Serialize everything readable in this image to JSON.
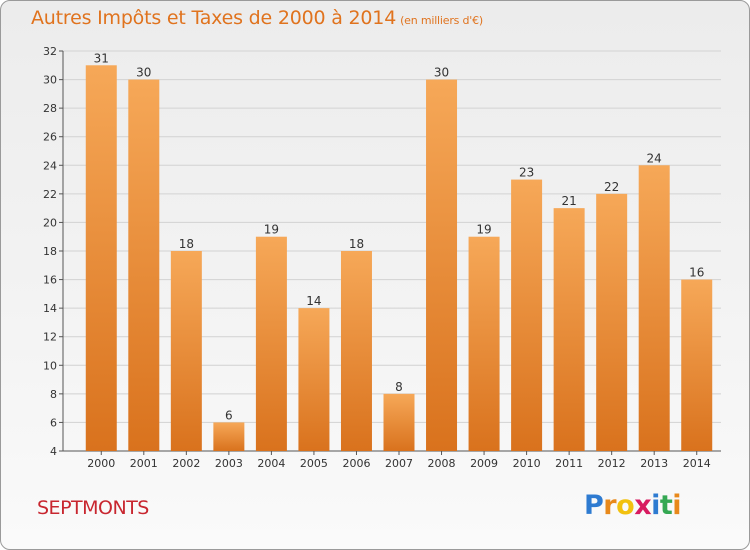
{
  "header": {
    "title": "Autres Impôts et Taxes de 2000 à 2014",
    "unit": "(en milliers d'€)"
  },
  "footer": {
    "commune": "SEPTMONTS",
    "logo_letters": [
      "P",
      "r",
      "o",
      "x",
      "i",
      "t",
      "i"
    ],
    "logo_colors": [
      "#2e7bd1",
      "#e8891b",
      "#f2c10f",
      "#d81b60",
      "#2e7bd1",
      "#35a853",
      "#e8891b"
    ]
  },
  "colors": {
    "bar_top": "#f6a858",
    "bar_bottom": "#d9721d",
    "title": "#e0731e",
    "commune": "#c8262f"
  },
  "chart_data": {
    "type": "bar",
    "categories": [
      "2000",
      "2001",
      "2002",
      "2003",
      "2004",
      "2005",
      "2006",
      "2007",
      "2008",
      "2009",
      "2010",
      "2011",
      "2012",
      "2013",
      "2014"
    ],
    "values": [
      31,
      30,
      18,
      6,
      19,
      14,
      18,
      8,
      30,
      19,
      23,
      21,
      22,
      24,
      16
    ],
    "data_labels": [
      "31",
      "30",
      "18",
      "6",
      "19",
      "14",
      "18",
      "8",
      "30",
      "19",
      "23",
      "21",
      "22",
      "24",
      "16"
    ],
    "title": "Autres Impôts et Taxes de 2000 à 2014",
    "ylabel": "(en milliers d'€)",
    "ylim": [
      4,
      32
    ],
    "yticks": [
      "4",
      "6",
      "8",
      "10",
      "12",
      "14",
      "16",
      "18",
      "20",
      "22",
      "24",
      "26",
      "28",
      "30",
      "32"
    ],
    "grid": true,
    "legend": "none"
  }
}
